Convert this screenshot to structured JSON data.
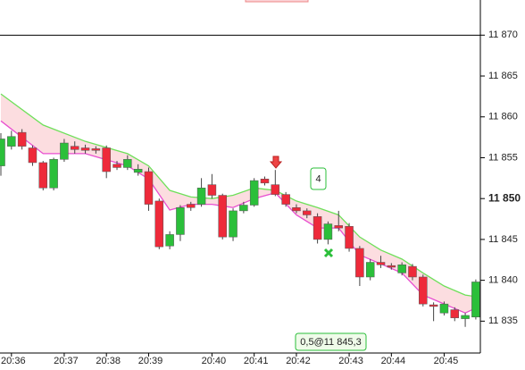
{
  "chart_data": {
    "type": "candlestick",
    "categories": [
      null,
      "20:36",
      null,
      null,
      null,
      null,
      "20:37",
      null,
      null,
      null,
      "20:38",
      null,
      null,
      null,
      "20:39",
      null,
      null,
      null,
      null,
      null,
      "20:40",
      null,
      null,
      null,
      "20:41",
      null,
      null,
      null,
      "20:42",
      null,
      null,
      null,
      null,
      "20:43",
      null,
      null,
      null,
      "20:44",
      null,
      null,
      null,
      null,
      "20:45",
      null,
      null,
      null
    ],
    "open": [
      11854.0,
      11856.4,
      11858.1,
      11856.2,
      11854.4,
      11851.3,
      11854.8,
      11856.4,
      11856.2,
      11856.1,
      11856.2,
      11854.2,
      11853.8,
      11853.2,
      11853.3,
      11849.7,
      11844.2,
      11845.6,
      11849.3,
      11849.3,
      11851.7,
      11850.4,
      11845.3,
      11848.5,
      11849.2,
      11852.4,
      11851.7,
      11850.5,
      11848.9,
      11848.5,
      11847.8,
      11845.0,
      11846.7,
      11846.6,
      11843.9,
      11840.4,
      11842.2,
      11841.8,
      11840.9,
      11841.7,
      11840.4,
      11837.0,
      11836.0,
      11836.4,
      11835.3,
      11835.5
    ],
    "high": [
      11858.0,
      11858.3,
      11858.5,
      11856.5,
      11854.6,
      11855.0,
      11857.3,
      11857.0,
      11856.6,
      11856.4,
      11856.5,
      11854.6,
      11855.3,
      11854.2,
      11853.8,
      11850.0,
      11846.0,
      11849.2,
      11849.6,
      11852.5,
      11853.0,
      11850.6,
      11848.8,
      11849.6,
      11852.5,
      11852.7,
      11853.5,
      11850.8,
      11849.3,
      11848.8,
      11848.2,
      11847.2,
      11848.5,
      11847.0,
      11844.2,
      11842.6,
      11843.0,
      11842.1,
      11842.2,
      11842.0,
      11840.7,
      11837.3,
      11837.4,
      11836.7,
      11836.0,
      11840.1
    ],
    "low": [
      11852.8,
      11856.0,
      11856.0,
      11854.0,
      11851.0,
      11851.0,
      11854.5,
      11855.5,
      11855.5,
      11855.5,
      11852.5,
      11853.5,
      11853.5,
      11852.8,
      11848.5,
      11843.8,
      11843.8,
      11844.8,
      11848.5,
      11849.0,
      11850.0,
      11845.0,
      11844.8,
      11848.2,
      11849.0,
      11851.6,
      11850.3,
      11849.0,
      11848.2,
      11847.6,
      11844.5,
      11844.4,
      11846.0,
      11843.5,
      11839.3,
      11840.0,
      11841.5,
      11841.3,
      11840.6,
      11840.0,
      11836.8,
      11835.0,
      11835.7,
      11835.0,
      11834.3,
      11835.2
    ],
    "close": [
      11857.3,
      11857.6,
      11856.4,
      11854.4,
      11851.3,
      11854.8,
      11856.8,
      11856.0,
      11855.9,
      11855.9,
      11853.3,
      11853.8,
      11854.8,
      11853.6,
      11849.3,
      11844.1,
      11845.6,
      11848.9,
      11848.9,
      11851.3,
      11850.4,
      11845.3,
      11848.5,
      11849.2,
      11852.2,
      11851.9,
      11850.5,
      11849.3,
      11848.5,
      11848.0,
      11845.0,
      11846.9,
      11846.4,
      11843.9,
      11840.4,
      11842.2,
      11841.9,
      11841.6,
      11841.9,
      11840.4,
      11837.1,
      11836.8,
      11837.1,
      11835.4,
      11835.7,
      11839.8
    ],
    "up_color": "#2bbf3a",
    "down_color": "#ee2a3a",
    "overlays": [
      {
        "color": "#6ee05a",
        "x": [
          0,
          4,
          8,
          12,
          14,
          16,
          18,
          20,
          22,
          24,
          26,
          28,
          30,
          32,
          34,
          36,
          38,
          40,
          42,
          44,
          45
        ],
        "values": [
          11862.8,
          11859,
          11857,
          11855.5,
          11854,
          11851,
          11850.2,
          11850,
          11850.4,
          11851.3,
          11851,
          11849.7,
          11848.9,
          11848,
          11845.3,
          11843.7,
          11842.6,
          11840.9,
          11839.3,
          11838.2,
          11838
        ]
      },
      {
        "color": "#e84fd0",
        "x": [
          0,
          4,
          8,
          12,
          14,
          16,
          18,
          20,
          22,
          24,
          26,
          28,
          30,
          32,
          34,
          36,
          38,
          40,
          42,
          44,
          45
        ],
        "values": [
          11859.5,
          11855.5,
          11855.5,
          11854,
          11852.4,
          11848.6,
          11849.3,
          11849.3,
          11848.9,
          11850,
          11850.7,
          11848,
          11846.4,
          11846.4,
          11843.1,
          11842,
          11840.9,
          11838.2,
          11837.1,
          11836,
          11836.6
        ]
      }
    ],
    "band_color": "#fcdde0",
    "hline": 11870,
    "ylim": [
      11831.1,
      11874.3
    ],
    "yticks": [
      {
        "value": 11835,
        "label": "11 835"
      },
      {
        "value": 11840,
        "label": "11 840"
      },
      {
        "value": 11845,
        "label": "11 845"
      },
      {
        "value": 11850,
        "label": "11 850"
      },
      {
        "value": 11855,
        "label": "11 855"
      },
      {
        "value": 11860,
        "label": "11 860"
      },
      {
        "value": 11865,
        "label": "11 865"
      },
      {
        "value": 11870,
        "label": "11 870"
      }
    ],
    "bold_ytick": 11850,
    "annotations": {
      "count": "4",
      "order": "0,5@11 845,3"
    }
  }
}
